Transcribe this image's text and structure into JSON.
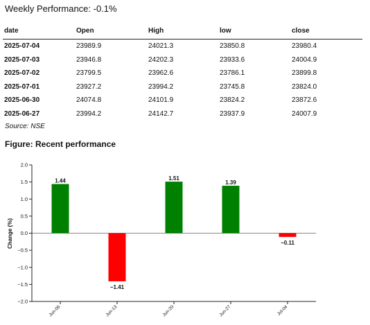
{
  "headline": "Weekly Performance: -0.1%",
  "table": {
    "headers": [
      "date",
      "Open",
      "High",
      "low",
      "close"
    ],
    "rows": [
      [
        "2025-07-04",
        "23989.9",
        "24021.3",
        "23850.8",
        "23980.4"
      ],
      [
        "2025-07-03",
        "23946.8",
        "24202.3",
        "23933.6",
        "24004.9"
      ],
      [
        "2025-07-02",
        "23799.5",
        "23962.6",
        "23786.1",
        "23899.8"
      ],
      [
        "2025-07-01",
        "23927.2",
        "23994.2",
        "23745.8",
        "23824.0"
      ],
      [
        "2025-06-30",
        "24074.8",
        "24101.9",
        "23824.2",
        "23872.6"
      ],
      [
        "2025-06-27",
        "23994.2",
        "24142.7",
        "23937.9",
        "24007.9"
      ]
    ]
  },
  "source": "Source: NSE",
  "figure_title": "Figure: Recent performance",
  "chart_data": {
    "type": "bar",
    "categories": [
      "Jun-06",
      "Jun-13",
      "Jun-20",
      "Jun-27",
      "Jul-04"
    ],
    "values": [
      1.44,
      -1.41,
      1.51,
      1.39,
      -0.11
    ],
    "value_labels": [
      "1.44",
      "−1.41",
      "1.51",
      "1.39",
      "−0.11"
    ],
    "ylabel": "Change (%)",
    "ylim": [
      -2.0,
      2.0
    ],
    "yticks": [
      2.0,
      1.5,
      1.0,
      0.5,
      0.0,
      -0.5,
      -1.0,
      -1.5,
      -2.0
    ],
    "ytick_labels": [
      "2.0",
      "1.5",
      "1.0",
      "0.5",
      "0.0",
      "−0.5",
      "−1.0",
      "−1.5",
      "−2.0"
    ],
    "colors": {
      "positive": "#008000",
      "negative": "#ff0000",
      "axis": "#222222",
      "zero_line": "#888888"
    }
  }
}
